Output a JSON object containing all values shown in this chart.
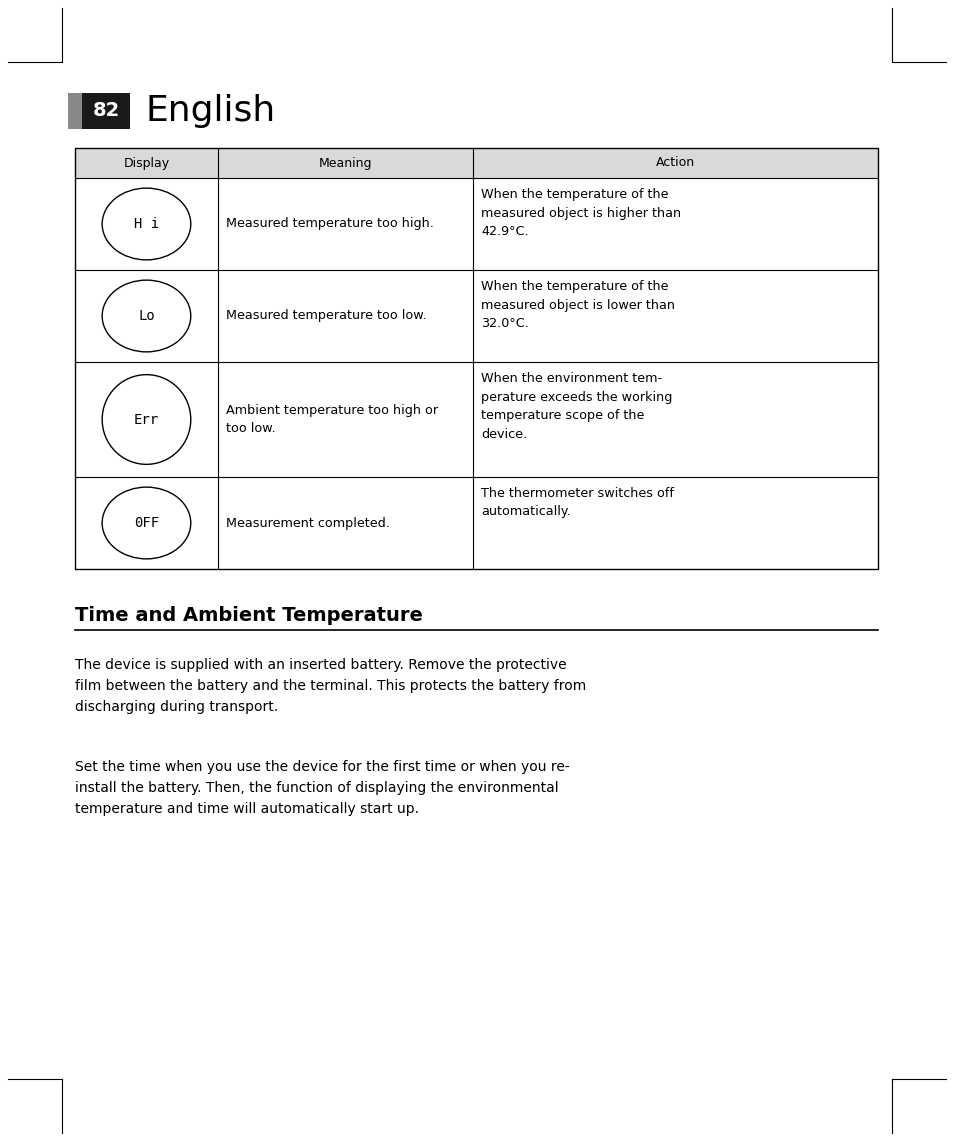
{
  "page_number": "82",
  "page_title": "English",
  "background_color": "#ffffff",
  "table_header_bg": "#d9d9d9",
  "table_headers": [
    "Display",
    "Meaning",
    "Action"
  ],
  "rows": [
    {
      "symbol": "H i",
      "meaning": "Measured temperature too high.",
      "action": "When the temperature of the\nmeasured object is higher than\n42.9°C."
    },
    {
      "symbol": "Lo",
      "meaning": "Measured temperature too low.",
      "action": "When the temperature of the\nmeasured object is lower than\n32.0°C."
    },
    {
      "symbol": "Err",
      "meaning": "Ambient temperature too high or\ntoo low.",
      "action": "When the environment tem-\nperature exceeds the working\ntemperature scope of the\ndevice."
    },
    {
      "symbol": "0FF",
      "meaning": "Measurement completed.",
      "action": "The thermometer switches off\nautomatically."
    }
  ],
  "section_title": "Time and Ambient Temperature",
  "paragraph1": "The device is supplied with an inserted battery. Remove the protective\nfilm between the battery and the terminal. This protects the battery from\ndischarging during transport.",
  "paragraph2": "Set the time when you use the device for the first time or when you re-\ninstall the battery. Then, the function of displaying the environmental\ntemperature and time will automatically start up.",
  "text_color": "#000000",
  "gray_color": "#888888",
  "dark_color": "#1a1a1a"
}
